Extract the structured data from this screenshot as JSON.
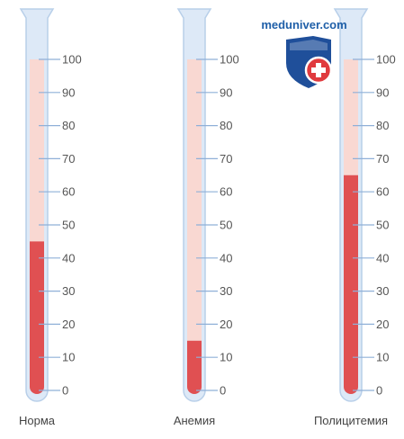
{
  "logo": {
    "text": "meduniver.com",
    "shield_color": "#1f4f9a",
    "accent_color": "#e03a3e"
  },
  "scale": {
    "ticks": [
      0,
      10,
      20,
      30,
      40,
      50,
      60,
      70,
      80,
      90,
      100
    ],
    "max": 100
  },
  "colors": {
    "tube_glass": "#dde9f7",
    "tube_outline": "#b8cfe9",
    "plasma": "#f9d8d2",
    "cells": "#e05052",
    "tick_line": "#8fb0d8"
  },
  "tubes": [
    {
      "label": "Норма",
      "hematocrit": 45
    },
    {
      "label": "Анемия",
      "hematocrit": 15
    },
    {
      "label": "Полицитемия",
      "hematocrit": 65
    }
  ]
}
